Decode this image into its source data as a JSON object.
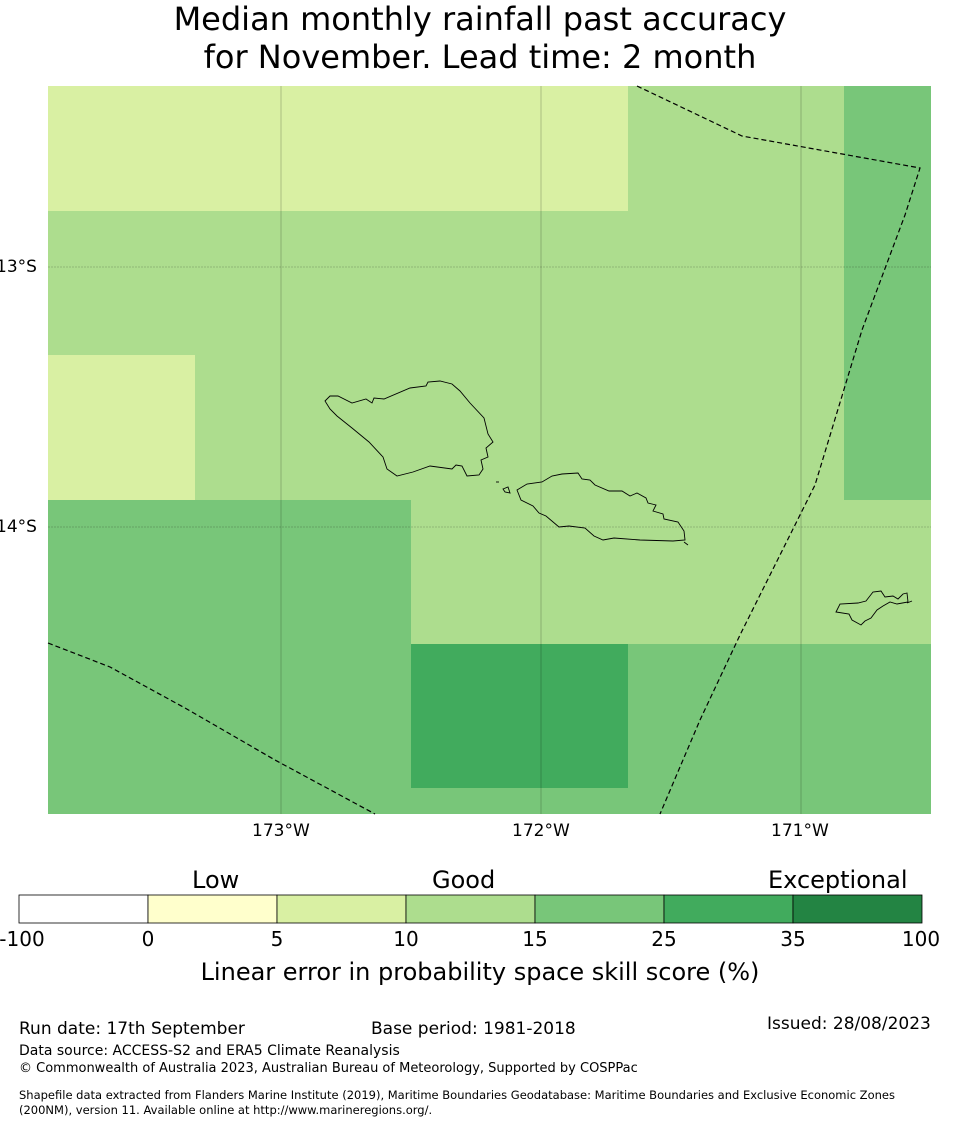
{
  "title": {
    "line1": "Median monthly rainfall past accuracy",
    "line2": "for November. Lead time: 2 month"
  },
  "map": {
    "lat_labels": [
      "13°S",
      "14°S"
    ],
    "lon_labels": [
      "173°W",
      "172°W",
      "171°W"
    ],
    "colors": {
      "c5": "#d9f0a3",
      "c10": "#addd8e",
      "c15": "#78c679",
      "c25": "#41ab5d",
      "c35": "#238443"
    }
  },
  "colorbar": {
    "categories": [
      "Low",
      "Good",
      "Exceptional"
    ],
    "ticks": [
      "-100",
      "0",
      "5",
      "10",
      "15",
      "25",
      "35",
      "100"
    ],
    "colors": [
      "#ffffff",
      "#ffffcc",
      "#d9f0a3",
      "#addd8e",
      "#78c679",
      "#41ab5d",
      "#238443"
    ],
    "label": "Linear error in probability space skill score (%)"
  },
  "footer": {
    "run_date": "Run date: 17th September",
    "base_period": "Base period: 1981-2018",
    "issued": "Issued: 28/08/2023",
    "data_source": "Data source: ACCESS-S2 and ERA5 Climate Reanalysis",
    "copyright": "© Commonwealth of Australia 2023, Australian Bureau of Meteorology, Supported by COSPPac",
    "shapefile_line1": "Shapefile data extracted from Flanders Marine Institute (2019), Maritime Boundaries Geodatabase: Maritime Boundaries and Exclusive Economic Zones",
    "shapefile_line2": "(200NM), version 11. Available online at http://www.marineregions.org/."
  }
}
